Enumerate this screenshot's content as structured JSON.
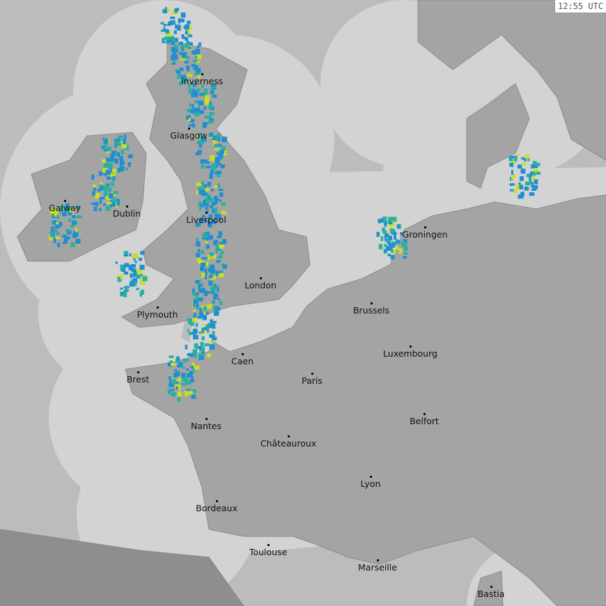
{
  "timestamp": "12:55 UTC",
  "colors": {
    "sea_covered": "#d3d3d3",
    "sea_uncovered": "#bcbcbc",
    "land": "#a4a4a4",
    "land_uncovered": "#8e8e8e",
    "border": "#8a8a8a",
    "rain_light": "#1e90d0",
    "rain_medium": "#2ab0a0",
    "rain_heavy": "#c8e020"
  },
  "cities": [
    {
      "name": "Inverness",
      "lon": -4.22,
      "lat": 57.48
    },
    {
      "name": "Glasgow",
      "lon": -4.25,
      "lat": 55.86
    },
    {
      "name": "Galway",
      "lon": -9.05,
      "lat": 53.27
    },
    {
      "name": "Dublin",
      "lon": -6.26,
      "lat": 53.35
    },
    {
      "name": "Liverpool",
      "lon": -2.98,
      "lat": 53.41
    },
    {
      "name": "London",
      "lon": -0.13,
      "lat": 51.51
    },
    {
      "name": "Plymouth",
      "lon": -4.14,
      "lat": 50.38
    },
    {
      "name": "Groningen",
      "lon": 6.57,
      "lat": 53.22
    },
    {
      "name": "Brussels",
      "lon": 4.35,
      "lat": 50.85
    },
    {
      "name": "Luxembourg",
      "lon": 6.13,
      "lat": 49.61
    },
    {
      "name": "Caen",
      "lon": -0.37,
      "lat": 49.18
    },
    {
      "name": "Brest",
      "lon": -4.49,
      "lat": 48.39
    },
    {
      "name": "Paris",
      "lon": 2.35,
      "lat": 48.86
    },
    {
      "name": "Belfort",
      "lon": 6.86,
      "lat": 47.64
    },
    {
      "name": "Nantes",
      "lon": -1.55,
      "lat": 47.22
    },
    {
      "name": "Châteauroux",
      "lon": 1.69,
      "lat": 46.81
    },
    {
      "name": "Lyon",
      "lon": 4.84,
      "lat": 45.76
    },
    {
      "name": "Bordeaux",
      "lon": -0.58,
      "lat": 44.84
    },
    {
      "name": "Toulouse",
      "lon": 1.44,
      "lat": 43.6
    },
    {
      "name": "Marseille",
      "lon": 5.37,
      "lat": 43.3
    },
    {
      "name": "Bastia",
      "lon": 9.45,
      "lat": 42.7
    }
  ]
}
